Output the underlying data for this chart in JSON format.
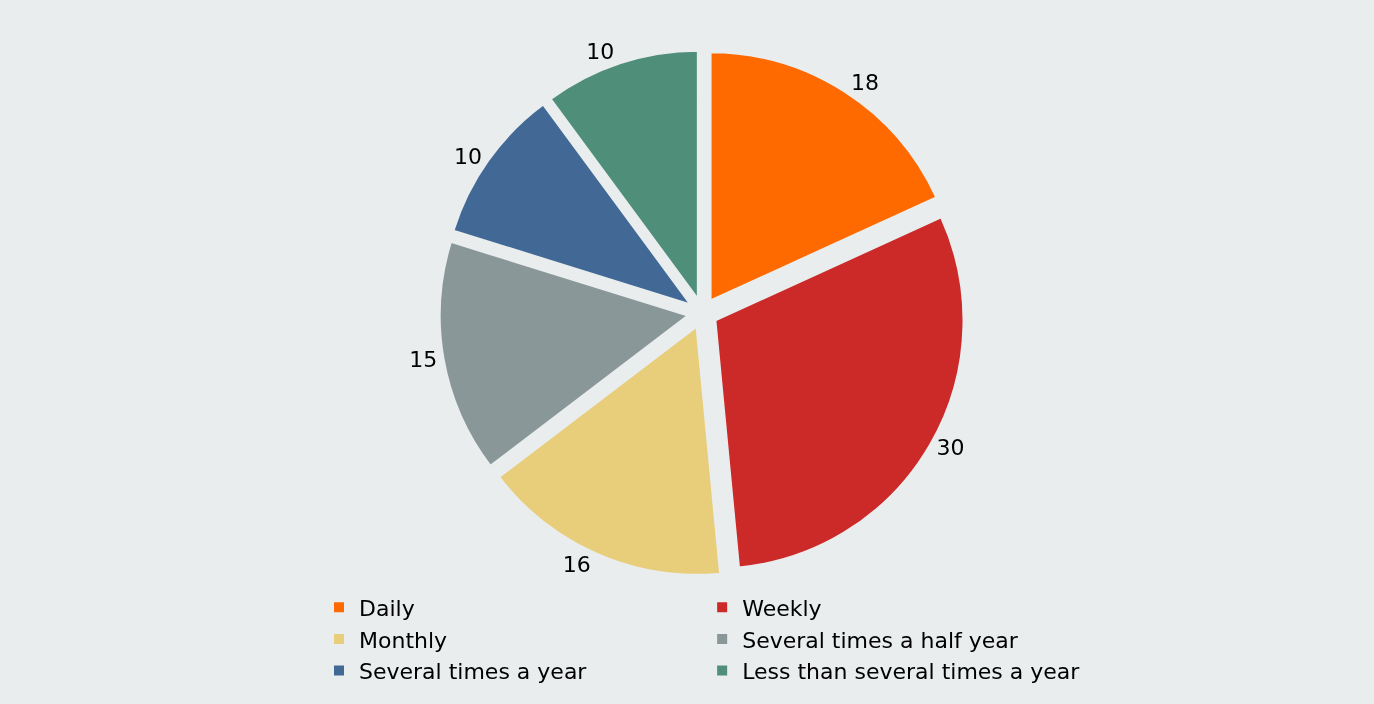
{
  "chart_data": {
    "type": "pie",
    "categories": [
      "Daily",
      "Weekly",
      "Monthly",
      "Several times a half year",
      "Several times a year",
      "Less than several times a year"
    ],
    "values": [
      18,
      30,
      16,
      15,
      10,
      10
    ],
    "colors": [
      "#ff6a00",
      "#cc2929",
      "#e8ce7a",
      "#8a9799",
      "#426996",
      "#4f8f7a"
    ],
    "data_labels": true,
    "legend": "bottom"
  }
}
